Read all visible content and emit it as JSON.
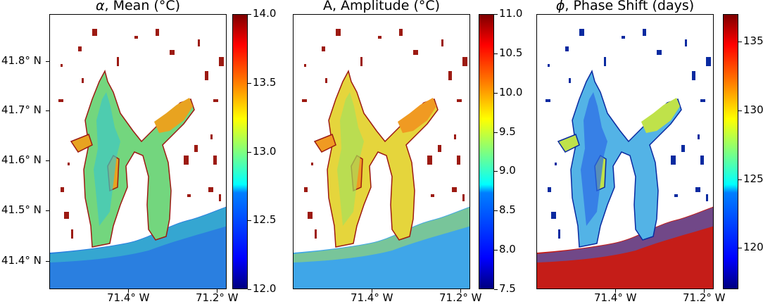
{
  "figure": {
    "lat_ticks": [
      "41.8° N",
      "41.7° N",
      "41.6° N",
      "41.5° N",
      "41.4° N"
    ],
    "lon_ticks": [
      "71.4° W",
      "71.2° W"
    ]
  },
  "panels": [
    {
      "title_symbol": "α",
      "title_text": ", Mean (°C)",
      "colormap": "jet",
      "colorbar_ticks": [
        "14.0",
        "13.5",
        "13.0",
        "12.5",
        "12.0"
      ],
      "colorbar_range": [
        12.0,
        14.0
      ],
      "colors": {
        "ocean": "#2a7fe0",
        "bay_low": "#3ec7c5",
        "bay_mid": "#73d67e",
        "bay_high": "#e8a320",
        "shore": "#9c1a12"
      }
    },
    {
      "title_symbol": "",
      "title_text": "A, Amplitude (°C)",
      "colormap": "jet",
      "colorbar_ticks": [
        "11.0",
        "10.5",
        "10.0",
        "9.5",
        "9.0",
        "8.5",
        "8.0",
        "7.5"
      ],
      "colorbar_range": [
        7.5,
        11.0
      ],
      "colors": {
        "ocean": "#3fa6e8",
        "bay_low": "#a8df5a",
        "bay_mid": "#e5d53c",
        "bay_high": "#f09a22",
        "shore": "#9c1a12"
      }
    },
    {
      "title_symbol": "ϕ",
      "title_text": ", Phase Shift (days)",
      "colormap": "jet",
      "colorbar_ticks": [
        "135",
        "130",
        "125",
        "120"
      ],
      "colorbar_range": [
        117,
        137
      ],
      "colors": {
        "ocean": "#c51d18",
        "bay_low": "#2c6be6",
        "bay_mid": "#53b3e6",
        "bay_high": "#bfe24a",
        "shore": "#0a2aa0"
      }
    }
  ]
}
